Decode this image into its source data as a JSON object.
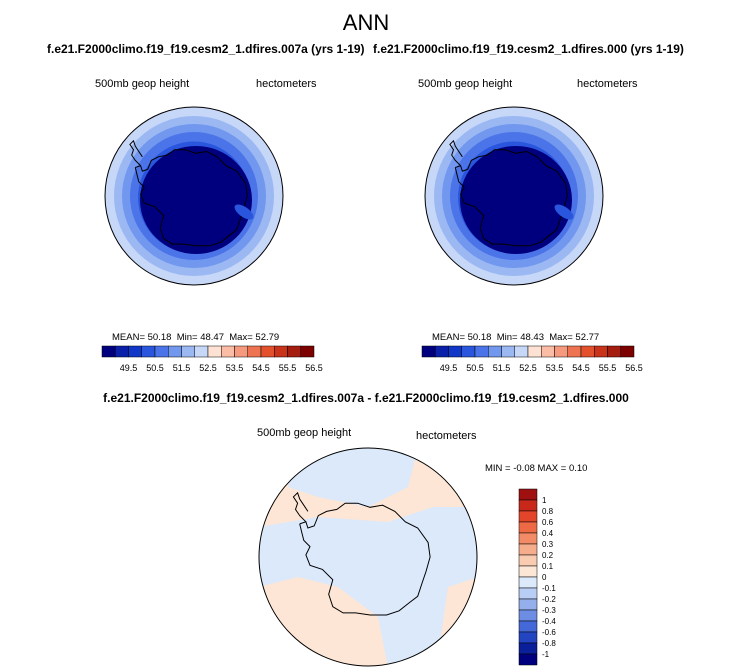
{
  "main_title": "ANN",
  "panels": [
    {
      "title": "f.e21.F2000climo.f19_f19.cesm2_1.dfires.007a (yrs 1-19)",
      "left_label": "500mb geop height",
      "right_label": "hectometers",
      "stats": {
        "mean_label": "MEAN=",
        "mean": "50.18",
        "min_label": "Min=",
        "min": "48.47",
        "max_label": "Max=",
        "max": "52.79"
      }
    },
    {
      "title": "f.e21.F2000climo.f19_f19.cesm2_1.dfires.000 (yrs 1-19)",
      "left_label": "500mb geop height",
      "right_label": "hectometers",
      "stats": {
        "mean_label": "MEAN=",
        "mean": "50.18",
        "min_label": "Min=",
        "min": "48.43",
        "max_label": "Max=",
        "max": "52.77"
      }
    }
  ],
  "diff_panel": {
    "title": "f.e21.F2000climo.f19_f19.cesm2_1.dfires.007a - f.e21.F2000climo.f19_f19.cesm2_1.dfires.000",
    "left_label": "500mb geop height",
    "right_label": "hectometers",
    "stats_text": "MIN =  -0.08 MAX =   0.10"
  },
  "chart_data": [
    {
      "type": "heatmap",
      "projection": "south-polar-stereographic",
      "variable": "500mb geop height",
      "units": "hectometers",
      "colorbar_ticks": [
        "49.5",
        "50.5",
        "51.5",
        "52.5",
        "53.5",
        "54.5",
        "55.5",
        "56.5"
      ],
      "colorbar_colors": [
        "#00007f",
        "#0a20a8",
        "#1037c8",
        "#2a55dd",
        "#4a74e8",
        "#7197ee",
        "#9bb8f3",
        "#c7d7f8",
        "#fde2d4",
        "#fbbca6",
        "#f59a7e",
        "#ee7350",
        "#e2502c",
        "#c8331a",
        "#a51d0f",
        "#7c0000"
      ],
      "mean": 50.18,
      "min": 48.47,
      "max": 52.79
    },
    {
      "type": "heatmap",
      "projection": "south-polar-stereographic",
      "variable": "500mb geop height",
      "units": "hectometers",
      "colorbar_ticks": [
        "49.5",
        "50.5",
        "51.5",
        "52.5",
        "53.5",
        "54.5",
        "55.5",
        "56.5"
      ],
      "colorbar_colors": [
        "#00007f",
        "#0a20a8",
        "#1037c8",
        "#2a55dd",
        "#4a74e8",
        "#7197ee",
        "#9bb8f3",
        "#c7d7f8",
        "#fde2d4",
        "#fbbca6",
        "#f59a7e",
        "#ee7350",
        "#e2502c",
        "#c8331a",
        "#a51d0f",
        "#7c0000"
      ],
      "mean": 50.18,
      "min": 48.43,
      "max": 52.77
    },
    {
      "type": "heatmap",
      "projection": "south-polar-stereographic",
      "variable": "500mb geop height",
      "units": "hectometers",
      "colorbar_ticks": [
        "1",
        "0.8",
        "0.6",
        "0.4",
        "0.3",
        "0.2",
        "0.1",
        "0",
        "-0.1",
        "-0.2",
        "-0.3",
        "-0.4",
        "-0.6",
        "-0.8",
        "-1"
      ],
      "colorbar_colors": [
        "#a01010",
        "#c8281a",
        "#e2452a",
        "#ee6a45",
        "#f38c66",
        "#f6ad8c",
        "#f9cbb0",
        "#fde6d6",
        "#dbe9fa",
        "#b9cef4",
        "#95afec",
        "#6c8de3",
        "#4468d8",
        "#2445c2",
        "#0a1f9a",
        "#00007f"
      ],
      "min": -0.08,
      "max": 0.1
    }
  ]
}
